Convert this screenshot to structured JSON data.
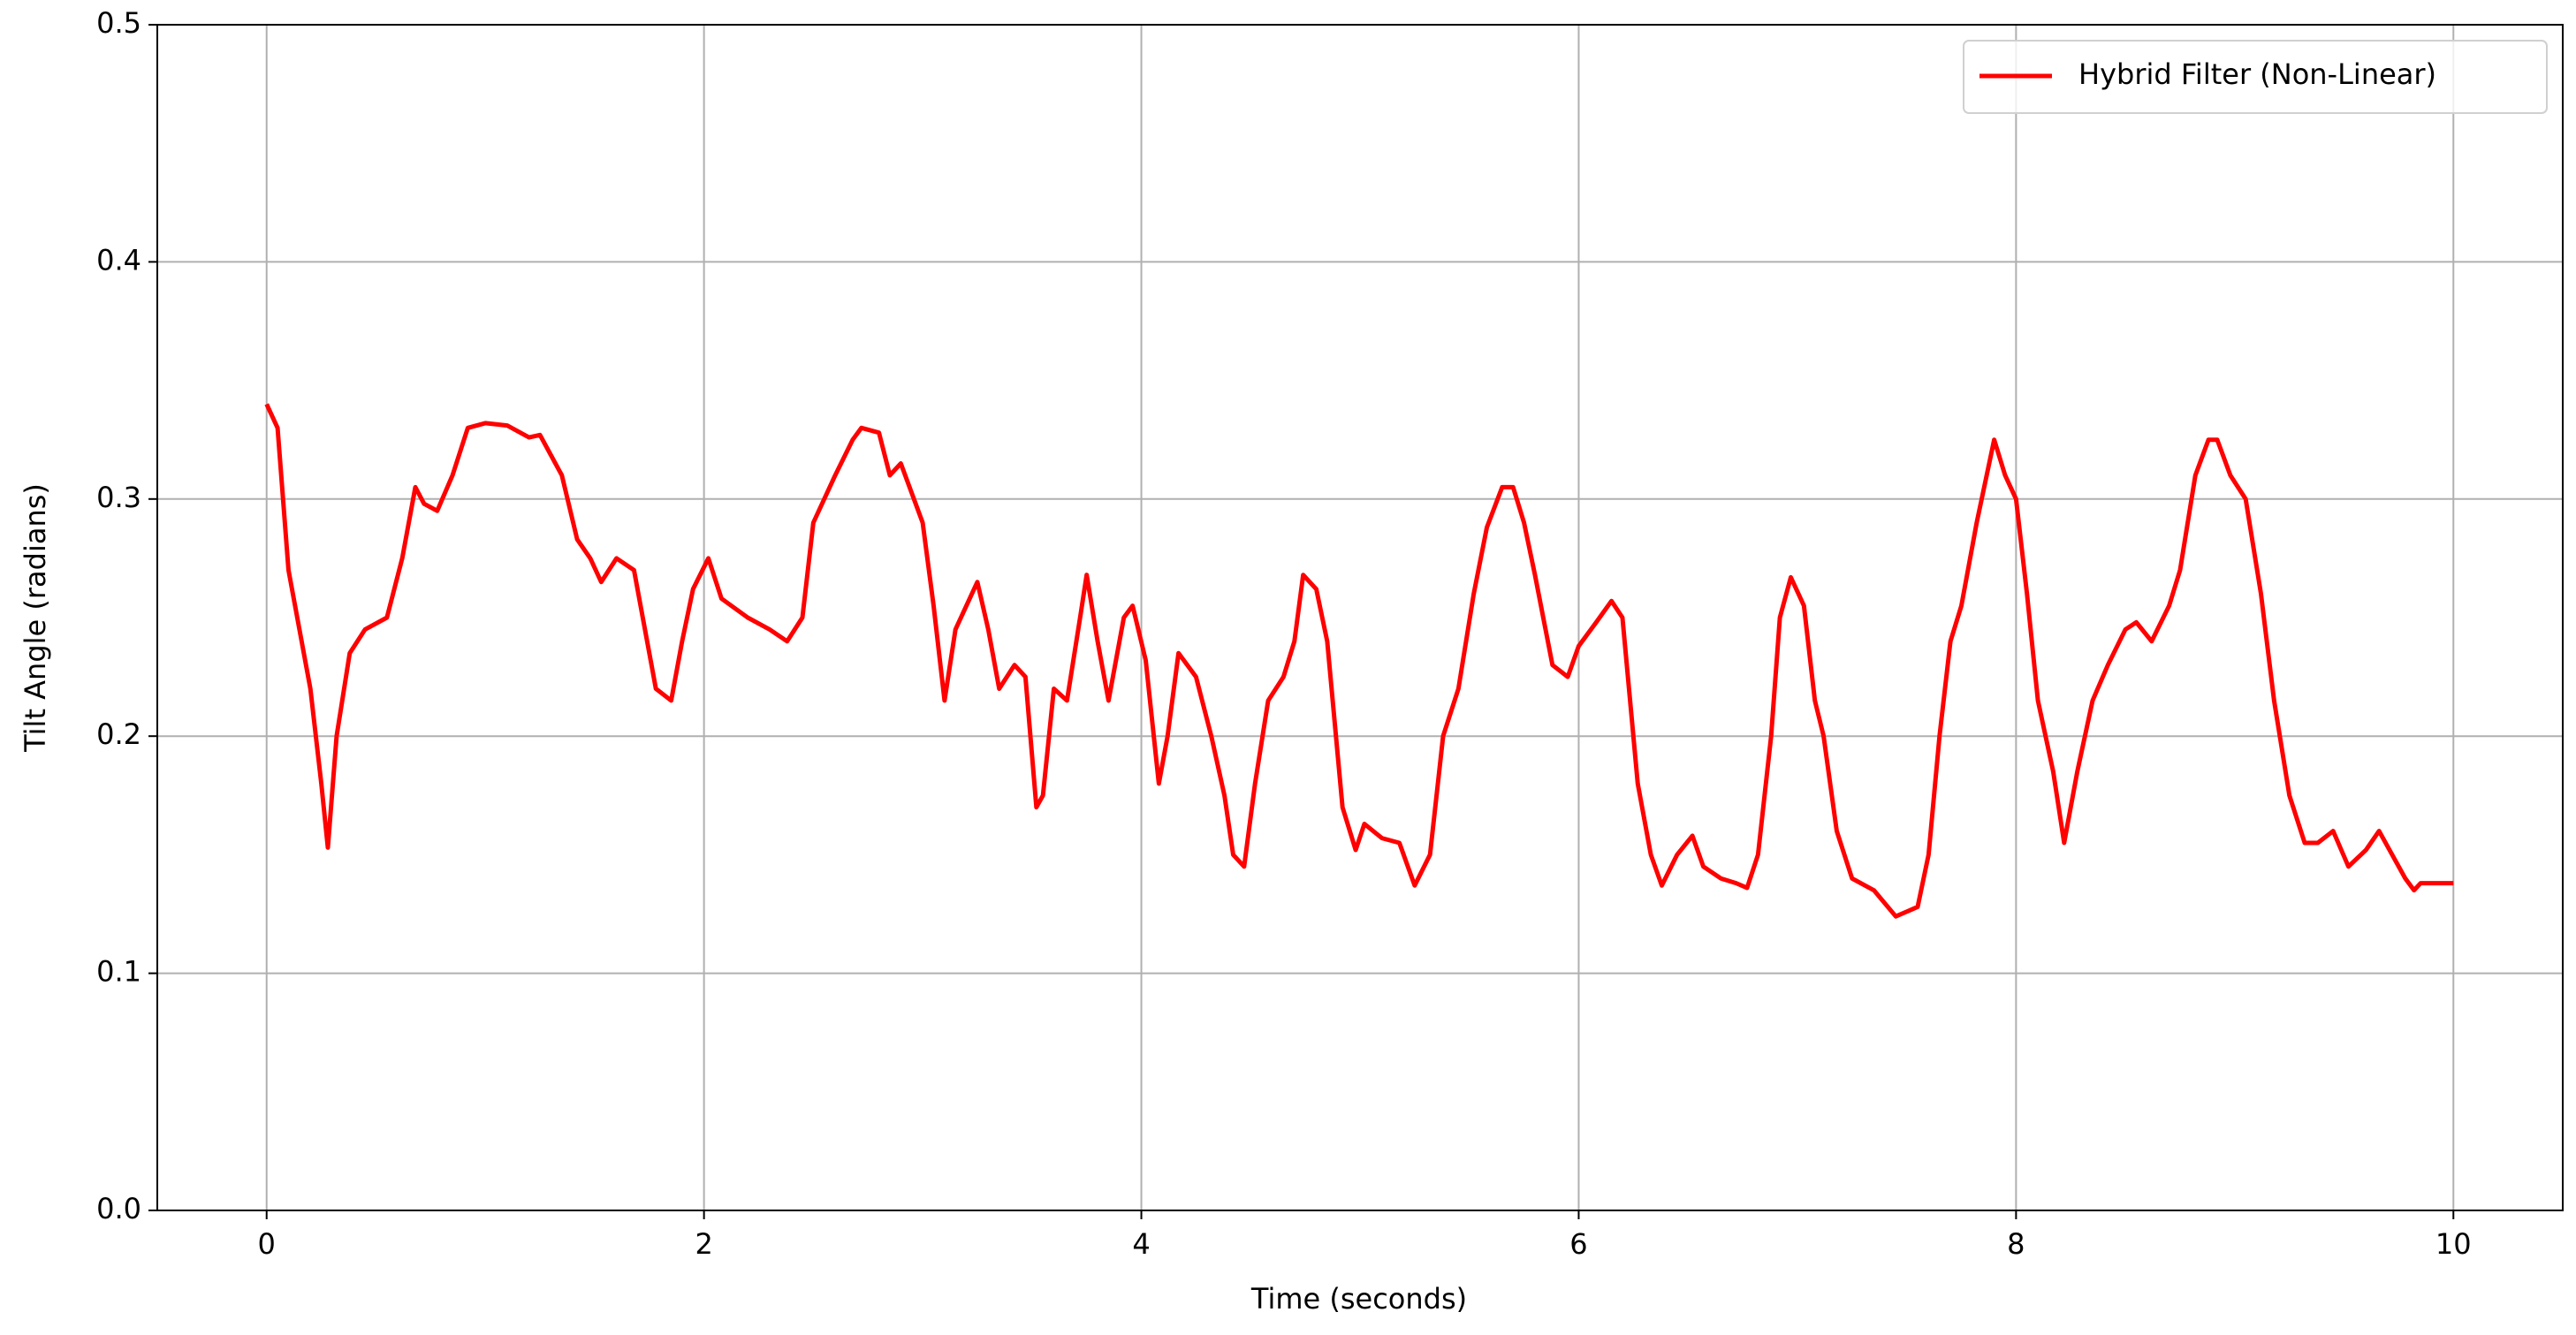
{
  "chart_data": {
    "type": "line",
    "xlabel": "Time (seconds)",
    "ylabel": "Tilt Angle (radians)",
    "xlim": [
      -0.5,
      10.5
    ],
    "ylim": [
      0,
      0.5
    ],
    "xticks": [
      0,
      2,
      4,
      6,
      8,
      10
    ],
    "yticks": [
      {
        "value": 0,
        "label": "0.0"
      },
      0.1,
      0.2,
      0.3,
      0.4,
      0.5
    ],
    "grid": true,
    "legend": "upper right",
    "x": [
      0,
      0.05,
      0.1,
      0.15,
      0.2,
      0.25,
      0.28,
      0.32,
      0.38,
      0.45,
      0.55,
      0.62,
      0.68,
      0.72,
      0.78,
      0.85,
      0.92,
      1.0,
      1.1,
      1.2,
      1.25,
      1.35,
      1.42,
      1.48,
      1.53,
      1.6,
      1.68,
      1.72,
      1.78,
      1.85,
      1.9,
      1.95,
      2.02,
      2.08,
      2.2,
      2.3,
      2.38,
      2.45,
      2.5,
      2.6,
      2.68,
      2.72,
      2.8,
      2.85,
      2.9,
      3.0,
      3.05,
      3.1,
      3.15,
      3.2,
      3.25,
      3.3,
      3.35,
      3.42,
      3.47,
      3.52,
      3.55,
      3.6,
      3.66,
      3.72,
      3.75,
      3.8,
      3.85,
      3.92,
      3.96,
      4.02,
      4.08,
      4.12,
      4.17,
      4.25,
      4.32,
      4.38,
      4.42,
      4.47,
      4.52,
      4.58,
      4.65,
      4.7,
      4.74,
      4.8,
      4.85,
      4.92,
      4.98,
      5.02,
      5.1,
      5.18,
      5.25,
      5.32,
      5.38,
      5.45,
      5.52,
      5.58,
      5.65,
      5.7,
      5.75,
      5.8,
      5.88,
      5.95,
      6.0,
      6.08,
      6.15,
      6.2,
      6.27,
      6.33,
      6.38,
      6.45,
      6.52,
      6.57,
      6.65,
      6.72,
      6.77,
      6.82,
      6.88,
      6.92,
      6.97,
      7.03,
      7.08,
      7.12,
      7.18,
      7.25,
      7.35,
      7.45,
      7.55,
      7.6,
      7.65,
      7.7,
      7.75,
      7.82,
      7.9,
      7.95,
      8.0,
      8.05,
      8.1,
      8.17,
      8.22,
      8.28,
      8.35,
      8.42,
      8.5,
      8.55,
      8.62,
      8.7,
      8.75,
      8.82,
      8.88,
      8.92,
      8.98,
      9.05,
      9.12,
      9.18,
      9.25,
      9.32,
      9.38,
      9.45,
      9.52,
      9.6,
      9.66,
      9.72,
      9.78,
      9.82,
      9.85,
      10.0
    ],
    "series": [
      {
        "name": "Hybrid Filter (Non-Linear)",
        "color": "#ff0000",
        "values": [
          0.34,
          0.33,
          0.27,
          0.245,
          0.22,
          0.18,
          0.153,
          0.2,
          0.235,
          0.245,
          0.25,
          0.275,
          0.305,
          0.298,
          0.295,
          0.31,
          0.33,
          0.332,
          0.331,
          0.326,
          0.327,
          0.31,
          0.283,
          0.275,
          0.265,
          0.275,
          0.27,
          0.25,
          0.22,
          0.215,
          0.24,
          0.262,
          0.275,
          0.258,
          0.25,
          0.245,
          0.24,
          0.25,
          0.29,
          0.31,
          0.325,
          0.33,
          0.328,
          0.31,
          0.315,
          0.29,
          0.255,
          0.215,
          0.245,
          0.255,
          0.265,
          0.245,
          0.22,
          0.23,
          0.225,
          0.17,
          0.175,
          0.22,
          0.215,
          0.25,
          0.268,
          0.24,
          0.215,
          0.25,
          0.255,
          0.232,
          0.18,
          0.2,
          0.235,
          0.225,
          0.2,
          0.175,
          0.15,
          0.145,
          0.18,
          0.215,
          0.225,
          0.24,
          0.268,
          0.262,
          0.24,
          0.17,
          0.152,
          0.163,
          0.157,
          0.155,
          0.137,
          0.15,
          0.2,
          0.22,
          0.26,
          0.288,
          0.305,
          0.305,
          0.29,
          0.268,
          0.23,
          0.225,
          0.238,
          0.248,
          0.257,
          0.25,
          0.18,
          0.15,
          0.137,
          0.15,
          0.158,
          0.145,
          0.14,
          0.138,
          0.136,
          0.15,
          0.2,
          0.25,
          0.267,
          0.255,
          0.215,
          0.2,
          0.16,
          0.14,
          0.135,
          0.124,
          0.128,
          0.15,
          0.2,
          0.24,
          0.255,
          0.29,
          0.325,
          0.31,
          0.3,
          0.26,
          0.215,
          0.185,
          0.155,
          0.185,
          0.215,
          0.23,
          0.245,
          0.248,
          0.24,
          0.255,
          0.27,
          0.31,
          0.325,
          0.325,
          0.31,
          0.3,
          0.26,
          0.215,
          0.175,
          0.155,
          0.155,
          0.16,
          0.145,
          0.152,
          0.16,
          0.15,
          0.14,
          0.135,
          0.138,
          0.138
        ]
      }
    ]
  }
}
